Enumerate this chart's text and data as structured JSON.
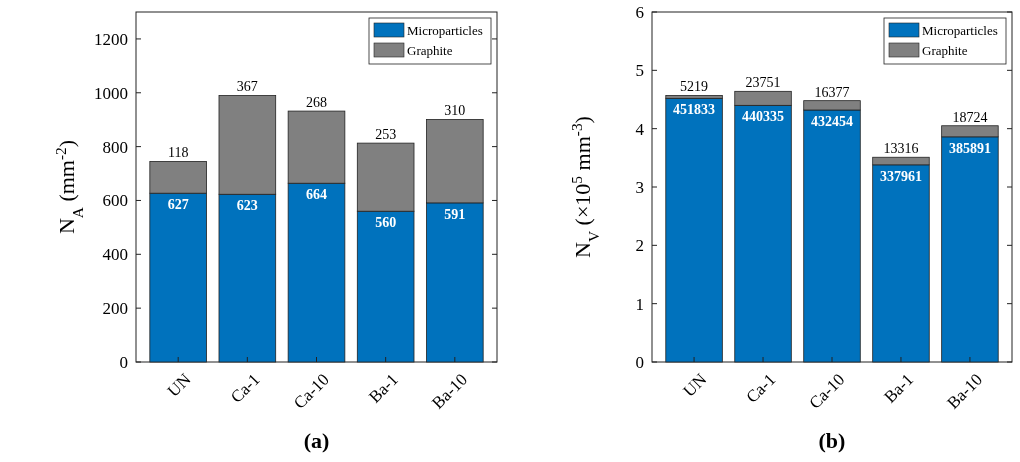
{
  "chart_data": [
    {
      "type": "bar",
      "stacked": true,
      "xlabel": "(a)",
      "ylabel": "N$_{A}$ (mm$^{-2}$)",
      "categories": [
        "UN",
        "Ca-1",
        "Ca-10",
        "Ba-1",
        "Ba-10"
      ],
      "ylim": [
        0,
        1300
      ],
      "yticks": [
        0,
        200,
        400,
        600,
        800,
        1000,
        1200
      ],
      "legend": "top right",
      "grid": false,
      "data_labels": true,
      "series": [
        {
          "name": "Microparticles",
          "color": "#0072bd",
          "values": [
            627,
            623,
            664,
            560,
            591
          ]
        },
        {
          "name": "Graphite",
          "color": "#808080",
          "values": [
            118,
            367,
            268,
            253,
            310
          ]
        }
      ]
    },
    {
      "type": "bar",
      "stacked": true,
      "xlabel": "(b)",
      "ylabel": "N$_{V}$ (×10$^{5}$ mm$^{-3}$)",
      "categories": [
        "UN",
        "Ca-1",
        "Ca-10",
        "Ba-1",
        "Ba-10"
      ],
      "ylim": [
        0,
        6
      ],
      "yticks": [
        0,
        1,
        2,
        3,
        4,
        5,
        6
      ],
      "legend": "top right",
      "grid": false,
      "series": [
        {
          "name": "Microparticles",
          "color": "#0072bd",
          "values": [
            4.52,
            4.4,
            4.32,
            3.38,
            3.86
          ]
        },
        {
          "name": "Graphite",
          "color": "#808080",
          "values": [
            0.05,
            0.24,
            0.16,
            0.13,
            0.19
          ]
        }
      ],
      "annotations": [
        {
          "text": "451833",
          "x": "UN",
          "y": 4.52
        },
        {
          "text": "440335",
          "x": "Ca-1",
          "y": 4.4
        },
        {
          "text": "432454",
          "x": "Ca-10",
          "y": 4.32
        },
        {
          "text": "337961",
          "x": "Ba-1",
          "y": 3.38
        },
        {
          "text": "385891",
          "x": "Ba-10",
          "y": 3.86
        },
        {
          "text": "5219",
          "x": "UN",
          "y": 4.57
        },
        {
          "text": "23751",
          "x": "Ca-1",
          "y": 4.64
        },
        {
          "text": "16377",
          "x": "Ca-10",
          "y": 4.48
        },
        {
          "text": "13316",
          "x": "Ba-1",
          "y": 3.51
        },
        {
          "text": "18724",
          "x": "Ba-10",
          "y": 4.05
        }
      ]
    }
  ]
}
